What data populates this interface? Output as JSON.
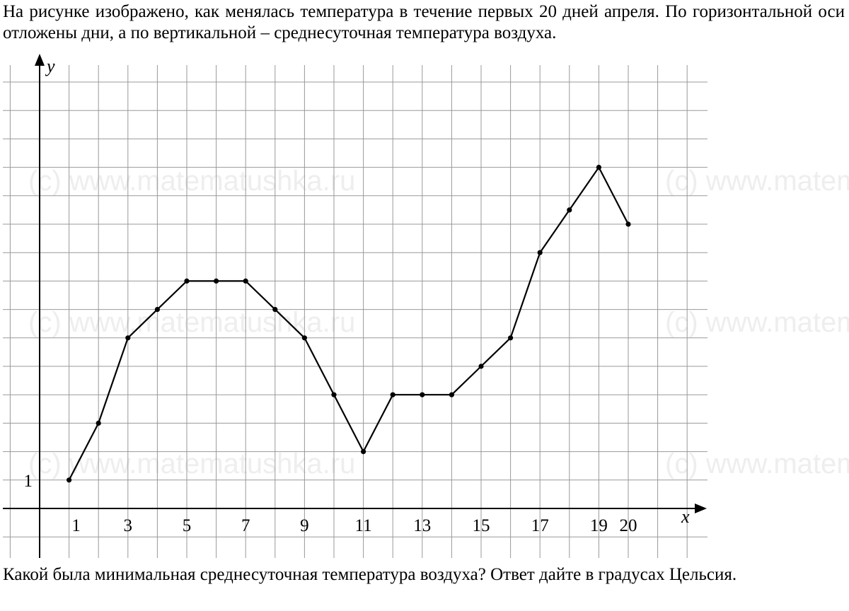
{
  "intro_text": "На рисунке изображено, как менялась температура в течение первых 20 дней апреля. По горизонтальной оси отложены дни, а по вертикальной – среднесуточная температура воздуха.",
  "question_text": "Какой была минимальная среднесуточная температура воздуха? Ответ дайте в градусах Цельсия.",
  "watermark": "(c) www.matematushka.ru",
  "chart_data": {
    "type": "line",
    "xlabel": "x",
    "ylabel": "y",
    "x_tick_labels": [
      "1",
      "3",
      "5",
      "7",
      "9",
      "11",
      "13",
      "15",
      "17",
      "19",
      "20"
    ],
    "y_tick_labels": [
      "1"
    ],
    "xlim": [
      0,
      22
    ],
    "ylim": [
      -1,
      15
    ],
    "grid": true,
    "x": [
      1,
      2,
      3,
      4,
      5,
      6,
      7,
      8,
      9,
      10,
      11,
      12,
      13,
      14,
      15,
      16,
      17,
      18,
      19,
      20
    ],
    "values": [
      1,
      3,
      6,
      7,
      8,
      8,
      8,
      7,
      6,
      4,
      2,
      4,
      4,
      4,
      5,
      6,
      9,
      10.5,
      12,
      10
    ],
    "colors": {
      "line": "#000000",
      "grid": "#999999"
    }
  }
}
